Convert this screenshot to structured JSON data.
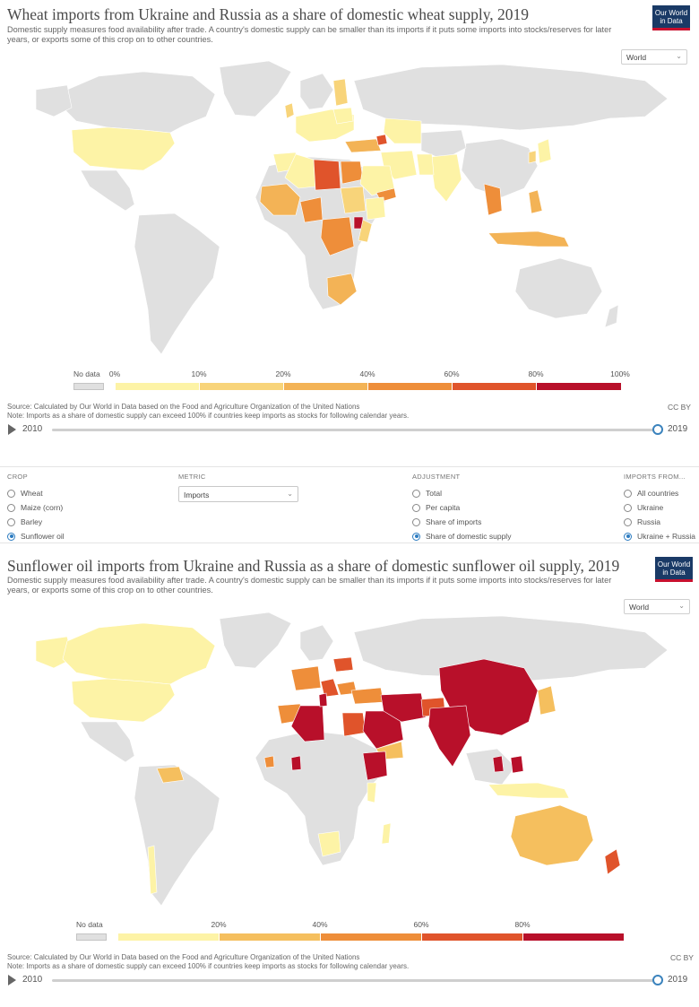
{
  "panel1": {
    "title": "Wheat imports from Ukraine and Russia as a share of domestic wheat supply, 2019",
    "subtitle": "Domestic supply measures food availability after trade. A country's domestic supply can be smaller than its imports if it puts some imports into stocks/reserves for later years, or exports some of this crop on to other countries.",
    "logo_line1": "Our World",
    "logo_line2": "in Data",
    "region": "World",
    "legend": {
      "nodata": "No data",
      "ticks": [
        "0%",
        "10%",
        "20%",
        "40%",
        "60%",
        "80%",
        "100%"
      ],
      "bins": [
        {
          "range": "0-10%",
          "color": "#fdf3a6"
        },
        {
          "range": "10-20%",
          "color": "#f8d47a"
        },
        {
          "range": "20-40%",
          "color": "#f3b356"
        },
        {
          "range": "40-60%",
          "color": "#ee8e3a"
        },
        {
          "range": "60-80%",
          "color": "#e0542b"
        },
        {
          "range": "80-100%",
          "color": "#b8102a"
        }
      ]
    },
    "source": "Source: Calculated by Our World in Data based on the Food and Agriculture Organization of the United Nations",
    "note": "Note: Imports as a share of domestic supply can exceed 100% if countries keep imports as stocks for following calendar years.",
    "license": "CC BY",
    "time_start": "2010",
    "time_end": "2019"
  },
  "controls": {
    "crop": {
      "label": "CROP",
      "options": [
        "Wheat",
        "Maize (corn)",
        "Barley",
        "Sunflower oil"
      ],
      "selected": 3
    },
    "metric": {
      "label": "METRIC",
      "value": "Imports"
    },
    "adjustment": {
      "label": "ADJUSTMENT",
      "options": [
        "Total",
        "Per capita",
        "Share of imports",
        "Share of domestic supply"
      ],
      "selected": 3
    },
    "imports_from": {
      "label": "IMPORTS FROM...",
      "options": [
        "All countries",
        "Ukraine",
        "Russia",
        "Ukraine + Russia"
      ],
      "selected": 3
    }
  },
  "panel2": {
    "title": "Sunflower oil imports from Ukraine and Russia as a share of domestic sunflower oil supply, 2019",
    "subtitle": "Domestic supply measures food availability after trade. A country's domestic supply can be smaller than its imports if it puts some imports into stocks/reserves for later years, or exports some of this crop on to other countries.",
    "logo_line1": "Our World",
    "logo_line2": "in Data",
    "region": "World",
    "legend": {
      "nodata": "No data",
      "ticks": [
        "20%",
        "40%",
        "60%",
        "80%"
      ],
      "bins": [
        {
          "range": "0-20%",
          "color": "#fdf3a6"
        },
        {
          "range": "20-40%",
          "color": "#f5bf5e"
        },
        {
          "range": "40-60%",
          "color": "#ee8e3a"
        },
        {
          "range": "60-80%",
          "color": "#e0542b"
        },
        {
          "range": "80%+",
          "color": "#b8102a"
        }
      ]
    },
    "source": "Source: Calculated by Our World in Data based on the Food and Agriculture Organization of the United Nations",
    "note": "Note: Imports as a share of domestic supply can exceed 100% if countries keep imports as stocks for following calendar years.",
    "license": "CC BY",
    "time_start": "2010",
    "time_end": "2019"
  },
  "colors": {
    "nodata": "#e0e0e0",
    "accent": "#2d7cc1",
    "logo_bg": "#1a3a66",
    "logo_stripe": "#c8102e"
  }
}
